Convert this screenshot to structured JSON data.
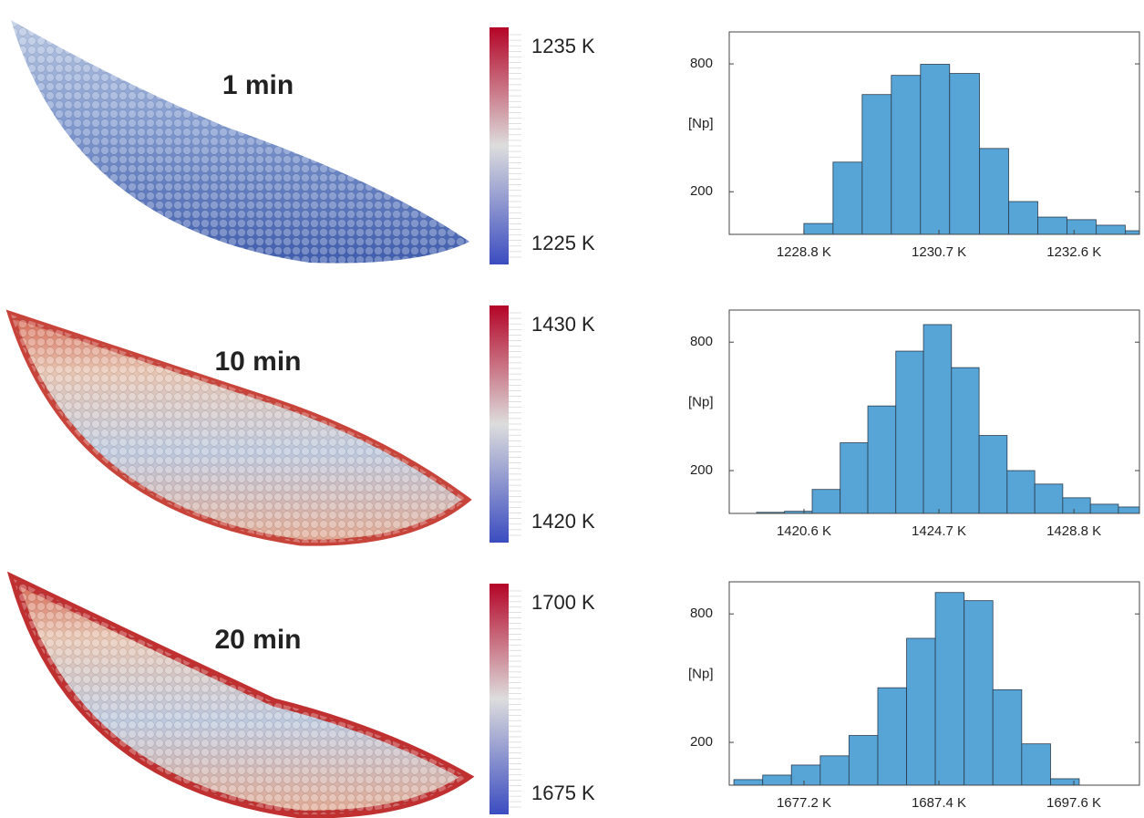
{
  "chart_data": [
    {
      "type": "histogram",
      "time_label": "1 min",
      "colorbar_labels": [
        "1235 K",
        "1225 K"
      ],
      "ylabel": "[Np]",
      "bins": [
        1228.8,
        1229.21,
        1229.62,
        1230.03,
        1230.44,
        1230.85,
        1231.27,
        1231.68,
        1232.09,
        1232.5,
        1232.91,
        1233.32,
        1233.73
      ],
      "values": [
        51,
        339,
        656,
        746,
        798,
        755,
        403,
        154,
        81,
        69,
        43,
        17
      ],
      "color": "#56a5d6",
      "xlim": [
        1227.75,
        1233.52
      ],
      "ylim": [
        0,
        950
      ],
      "xticks": [
        {
          "value": 1228.8,
          "label": "1228.8 K"
        },
        {
          "value": 1230.7,
          "label": "1230.7 K"
        },
        {
          "value": 1232.6,
          "label": "1232.6 K"
        }
      ],
      "yticks": [
        200,
        800
      ]
    },
    {
      "type": "histogram",
      "time_label": "10 min",
      "colorbar_labels": [
        "1430 K",
        "1420 K"
      ],
      "ylabel": "[Np]",
      "bins": [
        1419.16,
        1420.01,
        1420.85,
        1421.7,
        1422.54,
        1423.39,
        1424.23,
        1425.08,
        1425.92,
        1426.77,
        1427.61,
        1428.46,
        1429.3,
        1430.15,
        1430.99
      ],
      "values": [
        5,
        10,
        112,
        330,
        502,
        758,
        882,
        681,
        364,
        200,
        137,
        73,
        43,
        30
      ],
      "color": "#56a5d6",
      "xlim": [
        1418.33,
        1430.79
      ],
      "ylim": [
        0,
        950
      ],
      "xticks": [
        {
          "value": 1420.6,
          "label": "1420.6 K"
        },
        {
          "value": 1424.7,
          "label": "1424.7 K"
        },
        {
          "value": 1428.8,
          "label": "1428.8 K"
        }
      ],
      "yticks": [
        200,
        800
      ]
    },
    {
      "type": "histogram",
      "time_label": "20 min",
      "colorbar_labels": [
        "1700 K",
        "1675 K"
      ],
      "ylabel": "[Np]",
      "bins": [
        1671.9,
        1674.08,
        1676.25,
        1678.43,
        1680.6,
        1682.78,
        1684.96,
        1687.13,
        1689.31,
        1691.48,
        1693.66,
        1695.84,
        1698.01
      ],
      "values": [
        26,
        47,
        94,
        137,
        232,
        455,
        686,
        900,
        862,
        446,
        193,
        30
      ],
      "color": "#56a5d6",
      "xlim": [
        1671.55,
        1702.56
      ],
      "ylim": [
        0,
        950
      ],
      "xticks": [
        {
          "value": 1677.2,
          "label": "1677.2 K"
        },
        {
          "value": 1687.4,
          "label": "1687.4 K"
        },
        {
          "value": 1697.6,
          "label": "1697.6 K"
        }
      ],
      "yticks": [
        200,
        800
      ]
    }
  ]
}
